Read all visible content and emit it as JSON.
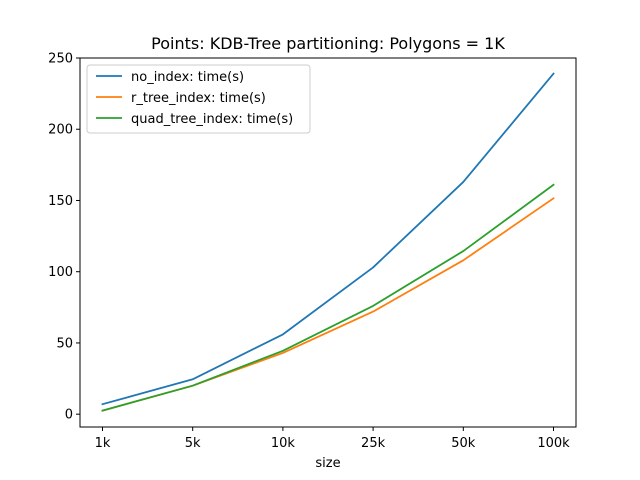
{
  "chart_data": {
    "type": "line",
    "title": "Points: KDB-Tree partitioning: Polygons = 1K",
    "xlabel": "size",
    "ylabel": "",
    "categories": [
      "1k",
      "5k",
      "10k",
      "25k",
      "50k",
      "100k"
    ],
    "ylim": [
      -9,
      250
    ],
    "yticks": [
      0,
      50,
      100,
      150,
      200,
      250
    ],
    "grid": false,
    "legend_position": "top-left",
    "series": [
      {
        "name": "no_index: time(s)",
        "color": "#1f77b4",
        "values": [
          7,
          24.5,
          56,
          103,
          163,
          239
        ]
      },
      {
        "name": "r_tree_index: time(s)",
        "color": "#ff7f0e",
        "values": [
          2.5,
          20,
          43,
          72,
          108,
          151.5
        ]
      },
      {
        "name": "quad_tree_index: time(s)",
        "color": "#2ca02c",
        "values": [
          2.5,
          20,
          44.5,
          76,
          114.5,
          161
        ]
      }
    ]
  }
}
